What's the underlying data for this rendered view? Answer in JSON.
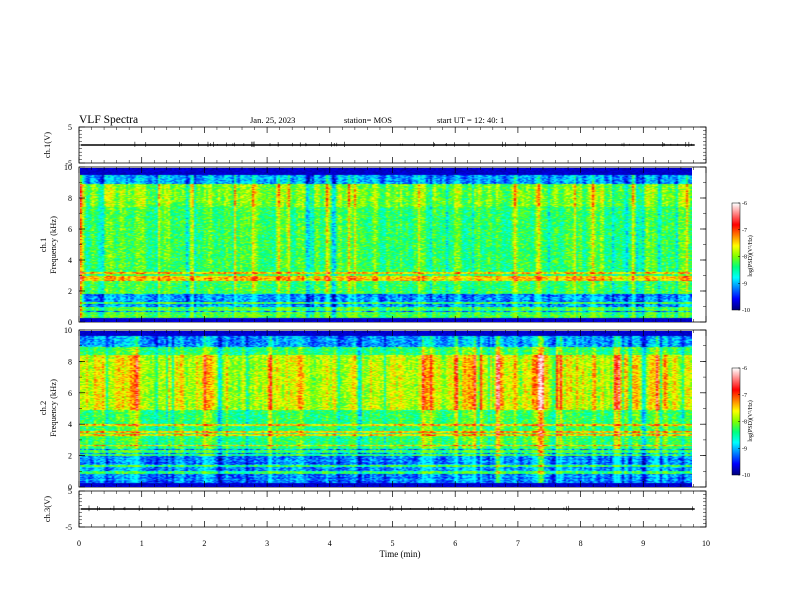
{
  "header": {
    "title": "VLF Spectra",
    "date": "Jan. 25, 2023",
    "station": "station= MOS",
    "start": "start  UT =   12: 40: 1"
  },
  "chart_data": [
    {
      "id": "ch1-waveform",
      "type": "line",
      "ylabel": "ch.1(V)",
      "ylim": [
        -5,
        5
      ],
      "y_ticks": [
        "5",
        "-5"
      ],
      "x_range": [
        0,
        10
      ],
      "baseline_value": 0
    },
    {
      "id": "ch1-spectrogram",
      "type": "heatmap",
      "ylabel": [
        "ch.1",
        "Frequency (kHz)"
      ],
      "ylim": [
        0,
        10
      ],
      "y_ticks": [
        "0",
        "2",
        "4",
        "6",
        "8",
        "10"
      ],
      "x_range": [
        0,
        9.82
      ],
      "colorbar": {
        "label": "log(PSD)(V²/Hz)",
        "ticks": [
          "-6",
          "-7",
          "-8",
          "-9",
          "-10"
        ],
        "range": [
          -10,
          -6
        ]
      },
      "band_kHz": [
        0.3,
        9.6
      ],
      "dominant_band_kHz": [
        2,
        9
      ],
      "hot_band_kHz": [
        7.5,
        9
      ]
    },
    {
      "id": "ch2-spectrogram",
      "type": "heatmap",
      "ylabel": [
        "ch.2",
        "Frequency (kHz)"
      ],
      "ylim": [
        0,
        10
      ],
      "y_ticks": [
        "0",
        "2",
        "4",
        "6",
        "8",
        "10"
      ],
      "x_range": [
        0,
        9.82
      ],
      "colorbar": {
        "label": "log(PSD)(V²/Hz)",
        "ticks": [
          "-6",
          "-7",
          "-8",
          "-9",
          "-10"
        ],
        "range": [
          -10,
          -6
        ]
      },
      "band_kHz": [
        0.3,
        9.7
      ],
      "dominant_band_kHz": [
        2.5,
        9
      ],
      "hot_band_kHz": [
        5,
        8.5
      ]
    },
    {
      "id": "ch3-waveform",
      "type": "line",
      "ylabel": "ch.3(V)",
      "ylim": [
        -5,
        5
      ],
      "y_ticks": [
        "5",
        "-5"
      ],
      "x_range": [
        0,
        10
      ],
      "baseline_value": 0
    }
  ],
  "x_axis": {
    "label": "Time (min)",
    "ticks": [
      "0",
      "1",
      "2",
      "3",
      "4",
      "5",
      "6",
      "7",
      "8",
      "9",
      "10"
    ],
    "range": [
      0,
      10
    ]
  },
  "colormap": [
    "#000080",
    "#0000ff",
    "#0080ff",
    "#00ffff",
    "#00ff80",
    "#80ff00",
    "#ffff00",
    "#ff8000",
    "#ff0000",
    "#ff8080",
    "#ffffff"
  ]
}
